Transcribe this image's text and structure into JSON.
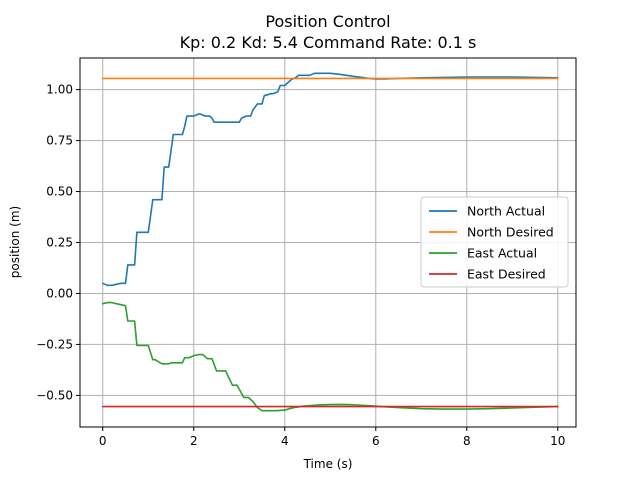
{
  "chart_data": {
    "type": "line",
    "title": "Position Control",
    "subtitle": "Kp: 0.2 Kd: 5.4 Command Rate: 0.1 s",
    "xlabel": "Time (s)",
    "ylabel": "position (m)",
    "xlim": [
      -0.5,
      10.4
    ],
    "ylim": [
      -0.655,
      1.155
    ],
    "xticks": [
      0,
      2,
      4,
      6,
      8,
      10
    ],
    "yticks": [
      -0.5,
      -0.25,
      0.0,
      0.25,
      0.5,
      0.75,
      1.0
    ],
    "ytick_labels": [
      "−0.50",
      "−0.25",
      "0.00",
      "0.25",
      "0.50",
      "0.75",
      "1.00"
    ],
    "grid": true,
    "legend_position": "center-right",
    "series": [
      {
        "name": "North Actual",
        "color": "#1f77b4",
        "x": [
          0,
          0.1,
          0.2,
          0.3,
          0.4,
          0.5,
          0.55,
          0.7,
          0.75,
          0.9,
          1.0,
          1.1,
          1.15,
          1.3,
          1.35,
          1.45,
          1.5,
          1.55,
          1.6,
          1.75,
          1.8,
          1.85,
          1.9,
          2.0,
          2.1,
          2.15,
          2.25,
          2.35,
          2.4,
          2.45,
          2.6,
          2.7,
          3.0,
          3.05,
          3.15,
          3.25,
          3.3,
          3.4,
          3.5,
          3.55,
          3.7,
          3.75,
          3.85,
          3.9,
          4.0,
          4.1,
          4.15,
          4.25,
          4.3,
          4.35,
          4.45,
          4.5,
          4.55,
          4.65,
          4.7,
          4.8,
          5.0,
          5.2,
          5.35,
          5.5,
          5.7,
          5.85,
          6.0,
          6.2,
          6.5,
          7.0,
          7.5,
          8.0,
          9.0,
          10.0
        ],
        "y": [
          0.05,
          0.04,
          0.04,
          0.045,
          0.05,
          0.05,
          0.14,
          0.14,
          0.3,
          0.3,
          0.3,
          0.46,
          0.46,
          0.46,
          0.62,
          0.62,
          0.7,
          0.78,
          0.78,
          0.78,
          0.82,
          0.87,
          0.87,
          0.87,
          0.88,
          0.88,
          0.87,
          0.87,
          0.86,
          0.84,
          0.84,
          0.84,
          0.84,
          0.86,
          0.87,
          0.87,
          0.9,
          0.93,
          0.93,
          0.97,
          0.98,
          0.98,
          0.99,
          1.02,
          1.02,
          1.04,
          1.05,
          1.06,
          1.07,
          1.07,
          1.07,
          1.07,
          1.07,
          1.08,
          1.08,
          1.08,
          1.08,
          1.075,
          1.07,
          1.065,
          1.06,
          1.055,
          1.052,
          1.052,
          1.055,
          1.058,
          1.06,
          1.062,
          1.062,
          1.058
        ]
      },
      {
        "name": "North Desired",
        "color": "#ff7f0e",
        "x": [
          0,
          10
        ],
        "y": [
          1.055,
          1.055
        ]
      },
      {
        "name": "East Actual",
        "color": "#2ca02c",
        "x": [
          0,
          0.1,
          0.2,
          0.3,
          0.4,
          0.5,
          0.55,
          0.7,
          0.75,
          0.9,
          1.0,
          1.1,
          1.15,
          1.3,
          1.35,
          1.45,
          1.5,
          1.6,
          1.75,
          1.8,
          1.85,
          1.9,
          2.0,
          2.1,
          2.2,
          2.3,
          2.4,
          2.5,
          2.6,
          2.7,
          2.85,
          2.95,
          3.1,
          3.2,
          3.3,
          3.4,
          3.5,
          3.55,
          3.7,
          3.8,
          4.0,
          4.1,
          4.2,
          4.4,
          4.6,
          4.8,
          5.0,
          5.2,
          5.4,
          5.6,
          5.8,
          6.0,
          6.5,
          7.0,
          7.5,
          8.0,
          8.5,
          9.0,
          9.5,
          10.0
        ],
        "y": [
          -0.05,
          -0.045,
          -0.045,
          -0.05,
          -0.055,
          -0.06,
          -0.135,
          -0.135,
          -0.255,
          -0.255,
          -0.255,
          -0.325,
          -0.325,
          -0.345,
          -0.345,
          -0.345,
          -0.34,
          -0.34,
          -0.34,
          -0.315,
          -0.315,
          -0.315,
          -0.305,
          -0.3,
          -0.3,
          -0.32,
          -0.32,
          -0.38,
          -0.38,
          -0.38,
          -0.45,
          -0.45,
          -0.51,
          -0.51,
          -0.53,
          -0.56,
          -0.575,
          -0.575,
          -0.575,
          -0.575,
          -0.572,
          -0.565,
          -0.56,
          -0.553,
          -0.549,
          -0.546,
          -0.545,
          -0.544,
          -0.545,
          -0.547,
          -0.55,
          -0.553,
          -0.56,
          -0.565,
          -0.567,
          -0.567,
          -0.565,
          -0.562,
          -0.558,
          -0.555
        ]
      },
      {
        "name": "East Desired",
        "color": "#d62728",
        "x": [
          0,
          10
        ],
        "y": [
          -0.555,
          -0.555
        ]
      }
    ]
  }
}
